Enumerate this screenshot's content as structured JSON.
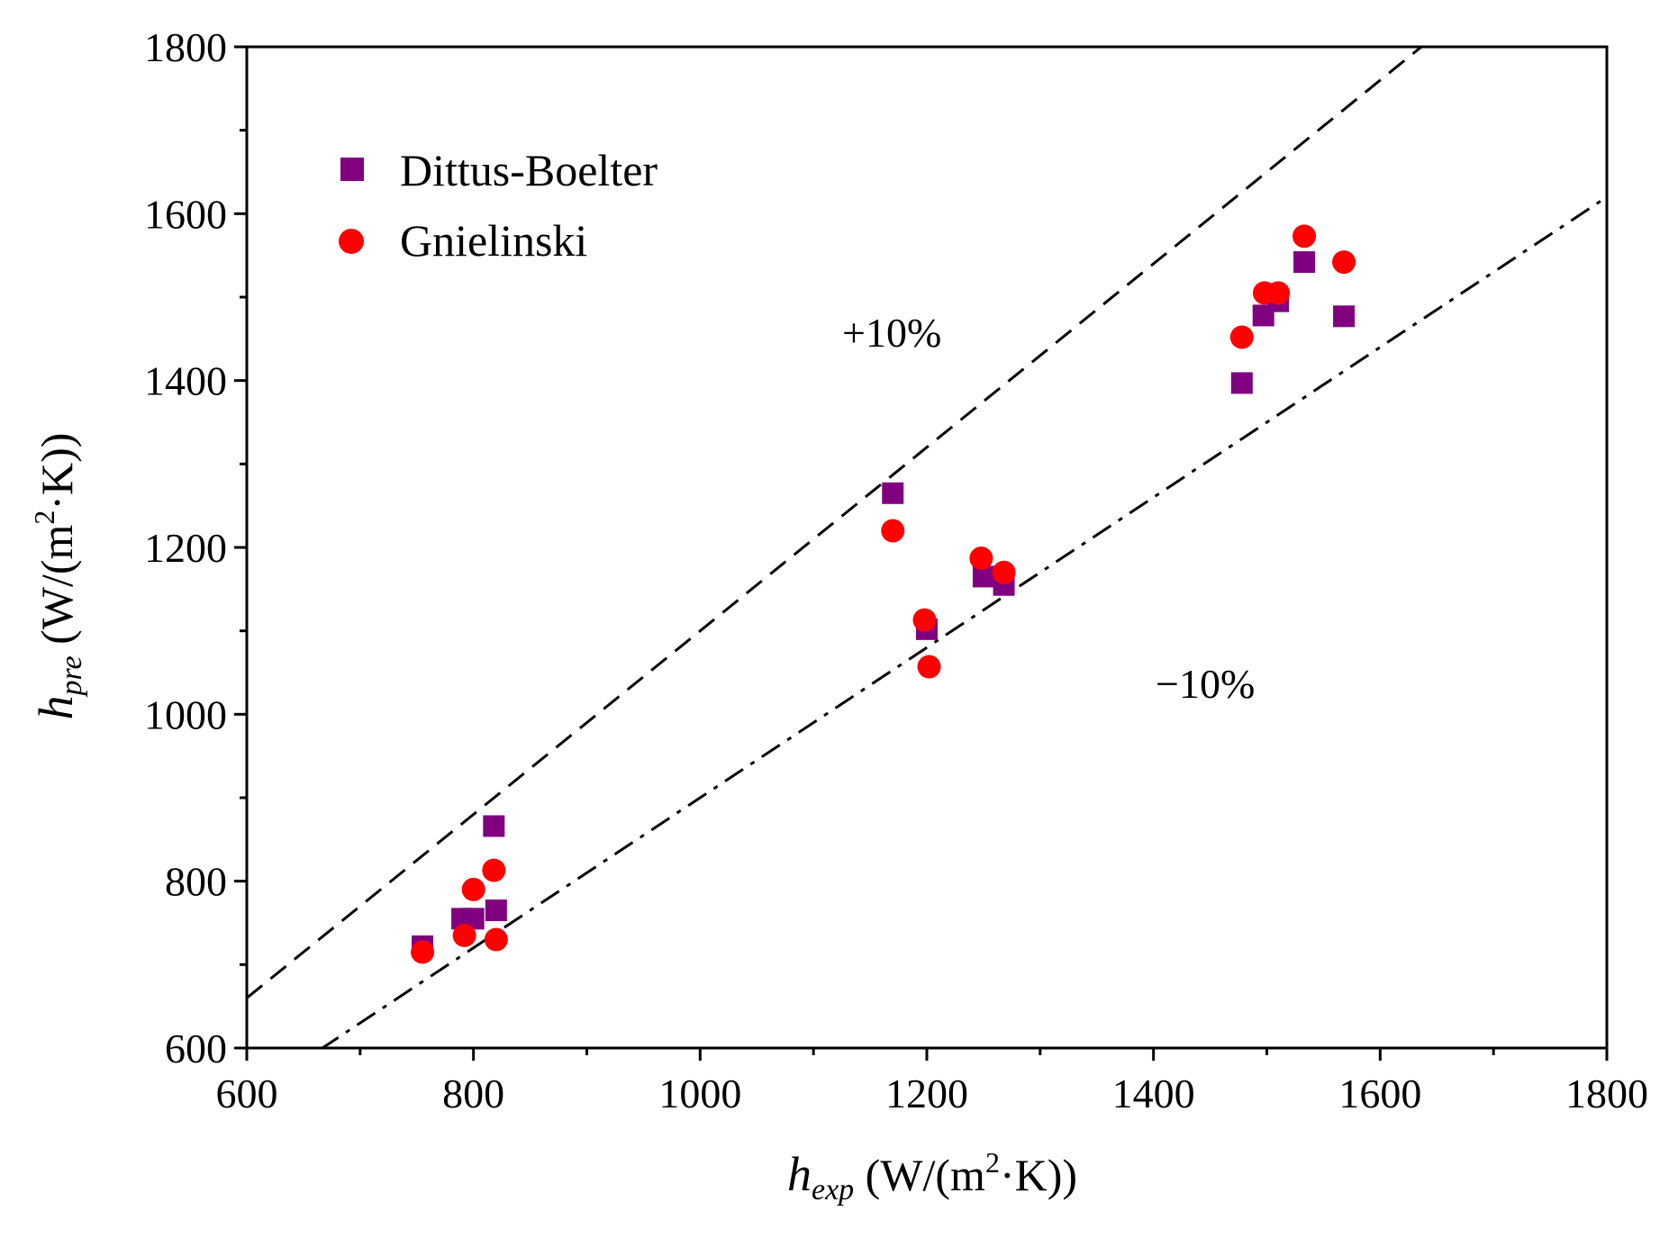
{
  "chart_data": {
    "type": "scatter",
    "title": "",
    "xlabel": {
      "symbol": "h",
      "subscript": "exp",
      "unit_pre": " (W/(m",
      "unit_sup": "2",
      "unit_post": "·K))"
    },
    "ylabel": {
      "symbol": "h",
      "subscript": "pre",
      "unit_pre": " (W/(m",
      "unit_sup": "2",
      "unit_post": "·K))"
    },
    "xlim": [
      600,
      1800
    ],
    "ylim": [
      600,
      1800
    ],
    "xticks": [
      600,
      800,
      1000,
      1200,
      1400,
      1600,
      1800
    ],
    "yticks": [
      600,
      800,
      1000,
      1200,
      1400,
      1600,
      1800
    ],
    "xtick_labels": [
      "600",
      "800",
      "1000",
      "1200",
      "1400",
      "1600",
      "1800"
    ],
    "ytick_labels": [
      "600",
      "800",
      "1000",
      "1200",
      "1400",
      "1600",
      "1800"
    ],
    "legend_position": "top-left",
    "series": [
      {
        "name": "Dittus-Boelter",
        "marker": "square",
        "color": "#800080",
        "x": [
          755,
          790,
          800,
          818,
          820,
          1170,
          1200,
          1250,
          1268,
          1478,
          1497,
          1510,
          1533,
          1568
        ],
        "y": [
          722,
          755,
          755,
          866,
          765,
          1265,
          1102,
          1165,
          1155,
          1397,
          1478,
          1495,
          1542,
          1477
        ]
      },
      {
        "name": "Gnielinski",
        "marker": "circle",
        "color": "#ff0000",
        "x": [
          755,
          792,
          800,
          818,
          820,
          1170,
          1198,
          1202,
          1248,
          1268,
          1478,
          1498,
          1510,
          1533,
          1568
        ],
        "y": [
          715,
          735,
          790,
          813,
          730,
          1220,
          1113,
          1057,
          1187,
          1170,
          1452,
          1505,
          1505,
          1573,
          1542
        ]
      }
    ],
    "reference_lines": [
      {
        "name": "+10%",
        "label": "+10%",
        "slope": 1.1,
        "style": "dashed",
        "color": "#000000"
      },
      {
        "name": "-10%",
        "label": "−10%",
        "slope": 0.9,
        "style": "dash-dot",
        "color": "#000000"
      }
    ]
  }
}
